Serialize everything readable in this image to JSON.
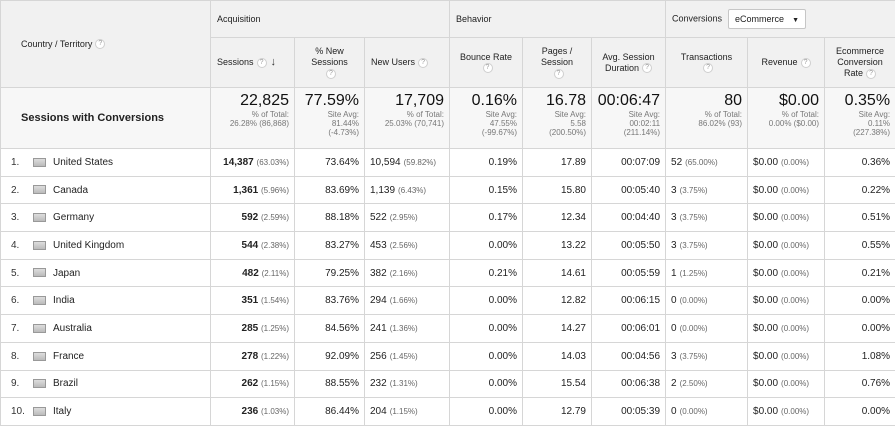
{
  "headers": {
    "country": "Country / Territory",
    "acquisition": "Acquisition",
    "behavior": "Behavior",
    "conversions": "Conversions",
    "conversion_select": "eCommerce",
    "sessions": "Sessions",
    "pct_new_sessions": "% New Sessions",
    "new_users": "New Users",
    "bounce_rate": "Bounce Rate",
    "pages_session": "Pages / Session",
    "avg_session_duration": "Avg. Session Duration",
    "transactions": "Transactions",
    "revenue": "Revenue",
    "ecommerce_conversion_rate": "Ecommerce Conversion Rate",
    "help_glyph": "?"
  },
  "summary": {
    "label": "Sessions with Conversions",
    "sessions": {
      "value": "22,825",
      "line1": "% of Total:",
      "line2": "26.28% (86,868)"
    },
    "pct_new_sessions": {
      "value": "77.59%",
      "line1": "Site Avg:",
      "line2": "81.44%",
      "line3": "(-4.73%)"
    },
    "new_users": {
      "value": "17,709",
      "line1": "% of Total:",
      "line2": "25.03% (70,741)"
    },
    "bounce_rate": {
      "value": "0.16%",
      "line1": "Site Avg:",
      "line2": "47.55%",
      "line3": "(-99.67%)"
    },
    "pages_session": {
      "value": "16.78",
      "line1": "Site Avg:",
      "line2": "5.58",
      "line3": "(200.50%)"
    },
    "avg_session_duration": {
      "value": "00:06:47",
      "line1": "Site Avg:",
      "line2": "00:02:11",
      "line3": "(211.14%)"
    },
    "transactions": {
      "value": "80",
      "line1": "% of Total:",
      "line2": "86.02% (93)"
    },
    "revenue": {
      "value": "$0.00",
      "line1": "% of Total:",
      "line2": "0.00% ($0.00)"
    },
    "ecommerce_conversion_rate": {
      "value": "0.35%",
      "line1": "Site Avg:",
      "line2": "0.11%",
      "line3": "(227.38%)"
    }
  },
  "rows": [
    {
      "idx": "1.",
      "country": "United States",
      "flag": "us-flag-icon",
      "sessions": "14,387",
      "sessions_pct": "(63.03%)",
      "pct_new": "73.64%",
      "new_users": "10,594",
      "new_users_pct": "(59.82%)",
      "bounce": "0.19%",
      "pages": "17.89",
      "duration": "00:07:09",
      "transactions": "52",
      "transactions_pct": "(65.00%)",
      "revenue": "$0.00",
      "revenue_pct": "(0.00%)",
      "conv_rate": "0.36%"
    },
    {
      "idx": "2.",
      "country": "Canada",
      "flag": "ca-flag-icon",
      "sessions": "1,361",
      "sessions_pct": "(5.96%)",
      "pct_new": "83.69%",
      "new_users": "1,139",
      "new_users_pct": "(6.43%)",
      "bounce": "0.15%",
      "pages": "15.80",
      "duration": "00:05:40",
      "transactions": "3",
      "transactions_pct": "(3.75%)",
      "revenue": "$0.00",
      "revenue_pct": "(0.00%)",
      "conv_rate": "0.22%"
    },
    {
      "idx": "3.",
      "country": "Germany",
      "flag": "de-flag-icon",
      "sessions": "592",
      "sessions_pct": "(2.59%)",
      "pct_new": "88.18%",
      "new_users": "522",
      "new_users_pct": "(2.95%)",
      "bounce": "0.17%",
      "pages": "12.34",
      "duration": "00:04:40",
      "transactions": "3",
      "transactions_pct": "(3.75%)",
      "revenue": "$0.00",
      "revenue_pct": "(0.00%)",
      "conv_rate": "0.51%"
    },
    {
      "idx": "4.",
      "country": "United Kingdom",
      "flag": "gb-flag-icon",
      "sessions": "544",
      "sessions_pct": "(2.38%)",
      "pct_new": "83.27%",
      "new_users": "453",
      "new_users_pct": "(2.56%)",
      "bounce": "0.00%",
      "pages": "13.22",
      "duration": "00:05:50",
      "transactions": "3",
      "transactions_pct": "(3.75%)",
      "revenue": "$0.00",
      "revenue_pct": "(0.00%)",
      "conv_rate": "0.55%"
    },
    {
      "idx": "5.",
      "country": "Japan",
      "flag": "jp-flag-icon",
      "sessions": "482",
      "sessions_pct": "(2.11%)",
      "pct_new": "79.25%",
      "new_users": "382",
      "new_users_pct": "(2.16%)",
      "bounce": "0.21%",
      "pages": "14.61",
      "duration": "00:05:59",
      "transactions": "1",
      "transactions_pct": "(1.25%)",
      "revenue": "$0.00",
      "revenue_pct": "(0.00%)",
      "conv_rate": "0.21%"
    },
    {
      "idx": "6.",
      "country": "India",
      "flag": "in-flag-icon",
      "sessions": "351",
      "sessions_pct": "(1.54%)",
      "pct_new": "83.76%",
      "new_users": "294",
      "new_users_pct": "(1.66%)",
      "bounce": "0.00%",
      "pages": "12.82",
      "duration": "00:06:15",
      "transactions": "0",
      "transactions_pct": "(0.00%)",
      "revenue": "$0.00",
      "revenue_pct": "(0.00%)",
      "conv_rate": "0.00%"
    },
    {
      "idx": "7.",
      "country": "Australia",
      "flag": "au-flag-icon",
      "sessions": "285",
      "sessions_pct": "(1.25%)",
      "pct_new": "84.56%",
      "new_users": "241",
      "new_users_pct": "(1.36%)",
      "bounce": "0.00%",
      "pages": "14.27",
      "duration": "00:06:01",
      "transactions": "0",
      "transactions_pct": "(0.00%)",
      "revenue": "$0.00",
      "revenue_pct": "(0.00%)",
      "conv_rate": "0.00%"
    },
    {
      "idx": "8.",
      "country": "France",
      "flag": "fr-flag-icon",
      "sessions": "278",
      "sessions_pct": "(1.22%)",
      "pct_new": "92.09%",
      "new_users": "256",
      "new_users_pct": "(1.45%)",
      "bounce": "0.00%",
      "pages": "14.03",
      "duration": "00:04:56",
      "transactions": "3",
      "transactions_pct": "(3.75%)",
      "revenue": "$0.00",
      "revenue_pct": "(0.00%)",
      "conv_rate": "1.08%"
    },
    {
      "idx": "9.",
      "country": "Brazil",
      "flag": "br-flag-icon",
      "sessions": "262",
      "sessions_pct": "(1.15%)",
      "pct_new": "88.55%",
      "new_users": "232",
      "new_users_pct": "(1.31%)",
      "bounce": "0.00%",
      "pages": "15.54",
      "duration": "00:06:38",
      "transactions": "2",
      "transactions_pct": "(2.50%)",
      "revenue": "$0.00",
      "revenue_pct": "(0.00%)",
      "conv_rate": "0.76%"
    },
    {
      "idx": "10.",
      "country": "Italy",
      "flag": "it-flag-icon",
      "sessions": "236",
      "sessions_pct": "(1.03%)",
      "pct_new": "86.44%",
      "new_users": "204",
      "new_users_pct": "(1.15%)",
      "bounce": "0.00%",
      "pages": "12.79",
      "duration": "00:05:39",
      "transactions": "0",
      "transactions_pct": "(0.00%)",
      "revenue": "$0.00",
      "revenue_pct": "(0.00%)",
      "conv_rate": "0.00%"
    }
  ]
}
